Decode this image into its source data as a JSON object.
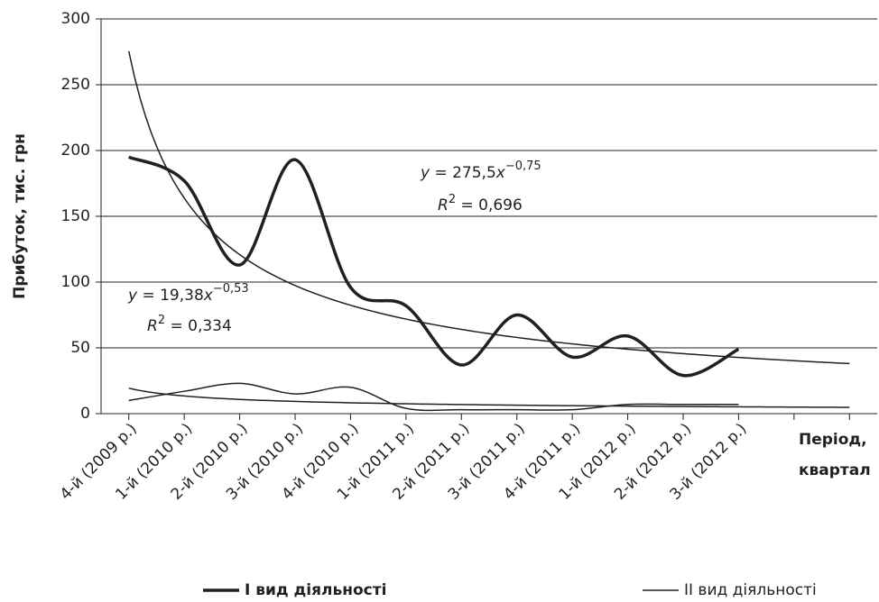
{
  "chart_data": {
    "type": "line",
    "y_label": "Прибуток, тис. грн",
    "x_label": [
      "Період,",
      "квартал"
    ],
    "categories": [
      "4-й (2009 р.)",
      "1-й (2010 р.)",
      "2-й (2010 р.)",
      "3-й (2010 р.)",
      "4-й (2010 р.)",
      "1-й (2011 р.)",
      "2-й (2011 р.)",
      "3-й (2011 р.)",
      "4-й (2011 р.)",
      "1-й (2012 р.)",
      "2-й (2012 р.)",
      "3-й (2012 р.)",
      null,
      null
    ],
    "series": [
      {
        "name": "І вид діяльності",
        "color": "#231f20",
        "width": 3.5,
        "values": [
          195,
          177,
          113,
          193,
          96,
          82,
          37,
          75,
          43,
          59,
          29,
          49,
          null,
          null
        ]
      },
      {
        "name": "ІІ вид діяльності",
        "color": "#231f20",
        "width": 1.5,
        "values": [
          10,
          17,
          23,
          15,
          20,
          4,
          3,
          3,
          3,
          7,
          7,
          7,
          null,
          null
        ]
      }
    ],
    "trendlines": [
      {
        "coef": 275.5,
        "exp": -0.75,
        "color": "#231f20"
      },
      {
        "coef": 19.38,
        "exp": -0.53,
        "color": "#231f20"
      }
    ],
    "annotations": [
      {
        "eq": [
          "y",
          " = 275,5",
          "x",
          "−0,75"
        ],
        "r2": [
          "R",
          "2",
          " = 0,696"
        ]
      },
      {
        "eq": [
          "y",
          " = 19,38",
          "x",
          "−0,53"
        ],
        "r2": [
          "R",
          "2",
          " = 0,334"
        ]
      }
    ],
    "ylim": [
      0,
      300
    ],
    "yticks": [
      0,
      50,
      100,
      150,
      200,
      250,
      300
    ],
    "grid": true
  }
}
